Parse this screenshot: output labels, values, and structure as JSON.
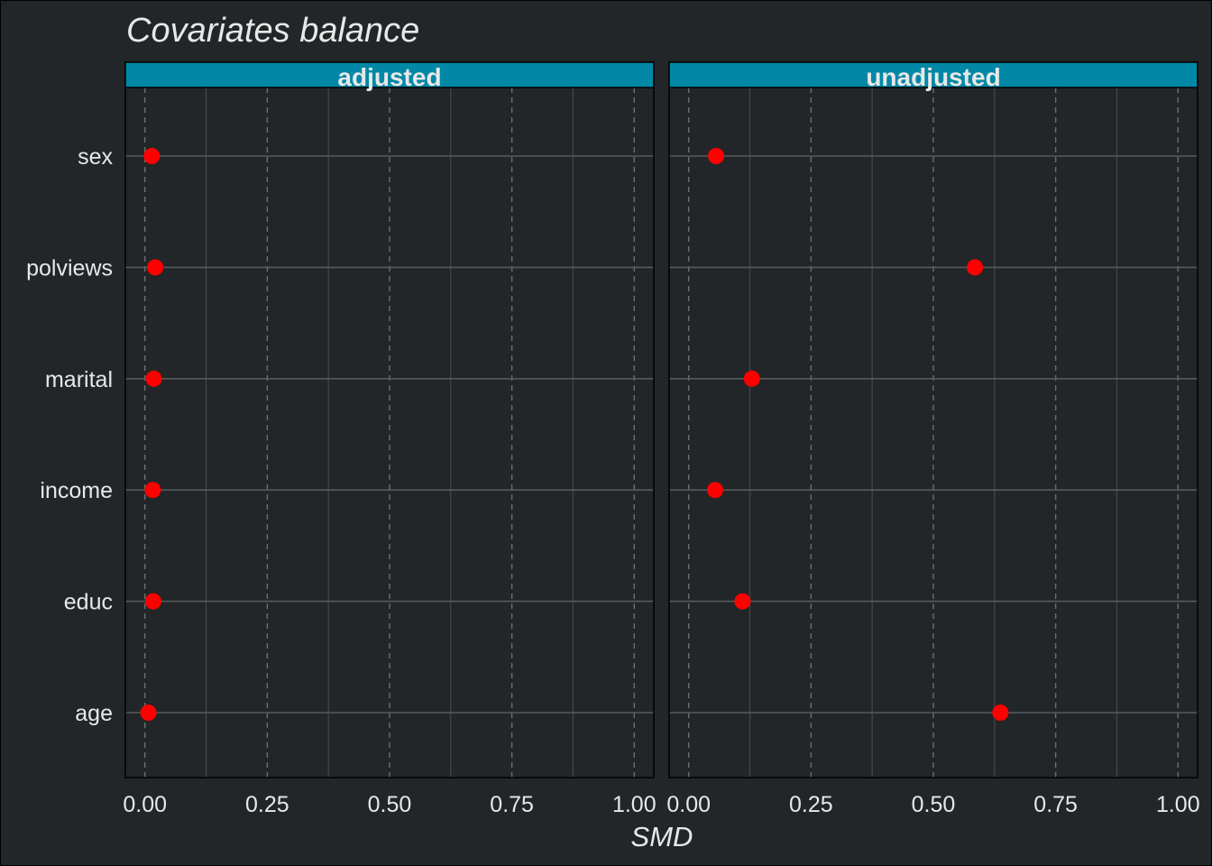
{
  "chart_data": {
    "type": "scatter",
    "title": "Covariates balance",
    "xlabel": "SMD",
    "ylabel": "",
    "xlim": [
      -0.04,
      1.04
    ],
    "x_ticks": [
      0,
      0.25,
      0.5,
      0.75,
      1
    ],
    "x_tick_labels": [
      "0.00",
      "0.25",
      "0.50",
      "0.75",
      "1.00"
    ],
    "categories": [
      "sex",
      "polviews",
      "marital",
      "income",
      "educ",
      "age"
    ],
    "grid": true,
    "colors": {
      "background": "#222628",
      "strip": "#0088A6",
      "strip_text": "#E8E8E8",
      "point": "#FF0000",
      "grid_major_x": "#6E6E6E",
      "grid_minor_x": "#444849",
      "grid_y": "#555A5C",
      "text": "#E8E8E8",
      "panel_border": "#000000"
    },
    "panels": [
      {
        "name": "adjusted",
        "values": [
          0.014,
          0.021,
          0.018,
          0.016,
          0.017,
          0.007
        ]
      },
      {
        "name": "unadjusted",
        "values": [
          0.056,
          0.585,
          0.129,
          0.054,
          0.11,
          0.637
        ]
      }
    ]
  }
}
